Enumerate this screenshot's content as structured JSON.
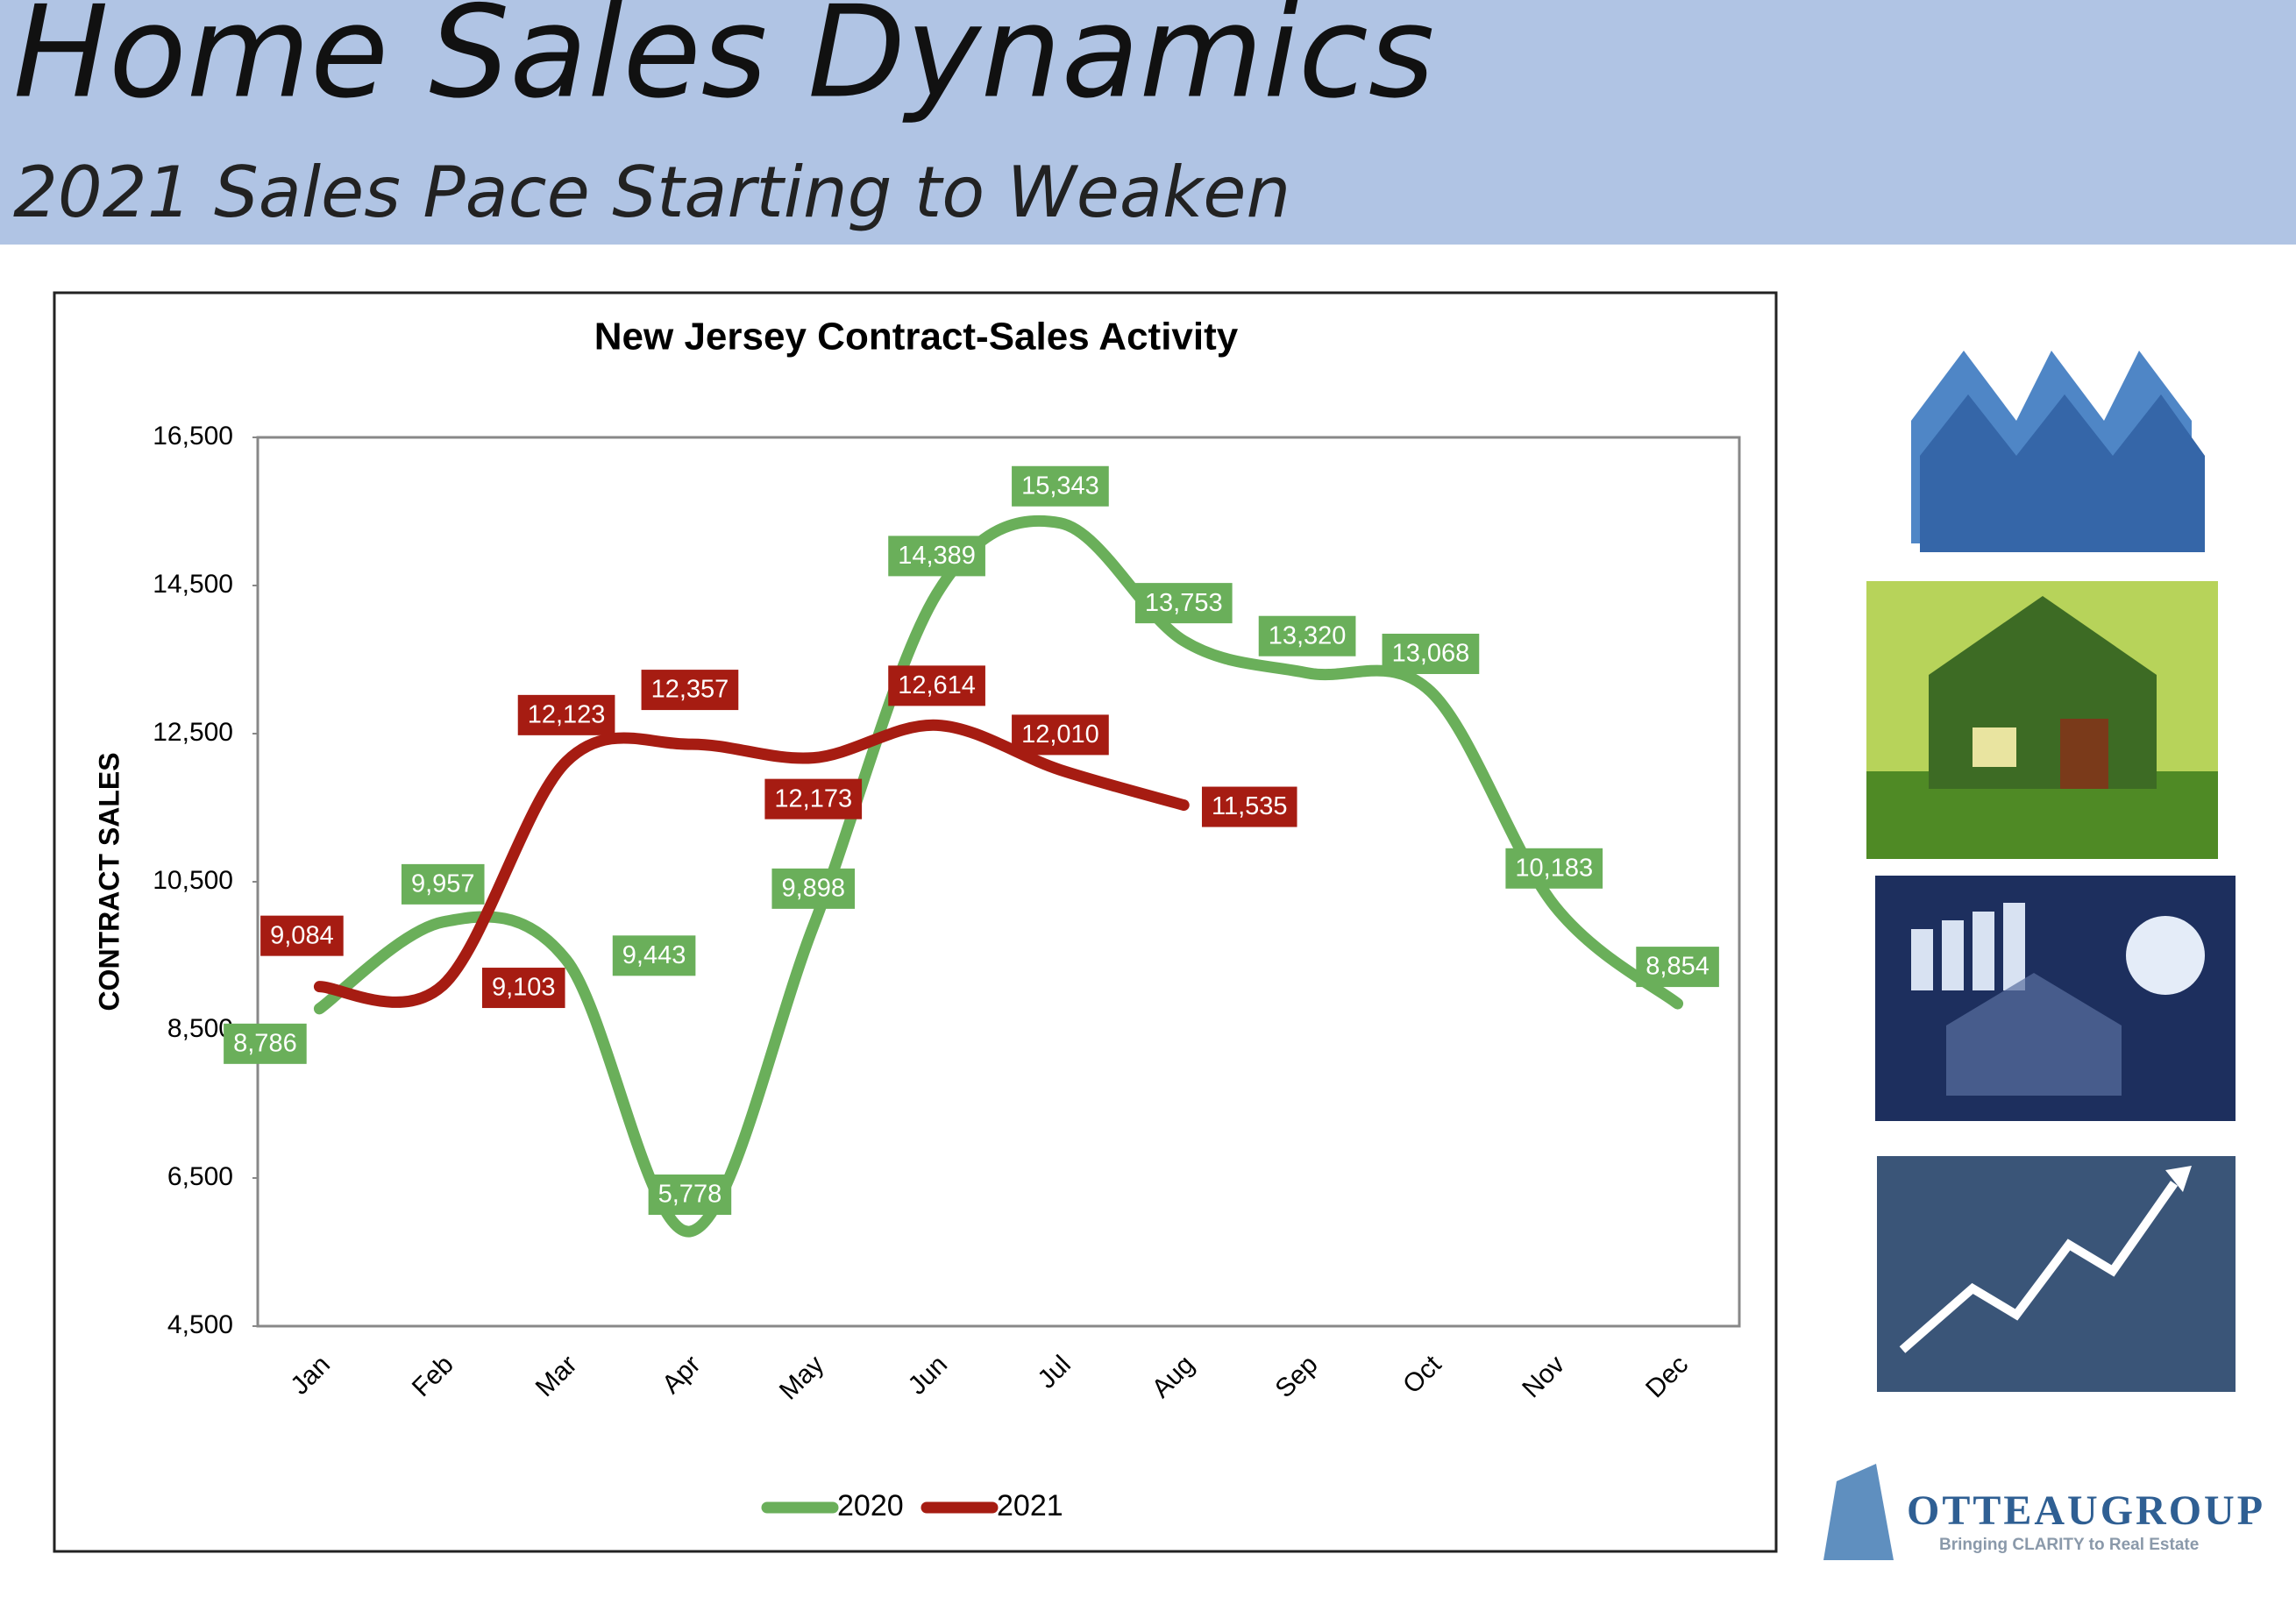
{
  "header": {
    "title": "Home Sales Dynamics",
    "subtitle": "2021 Sales Pace Starting to Weaken"
  },
  "chart_data": {
    "type": "line",
    "title": "New Jersey Contract-Sales Activity",
    "y_label": "CONTRACT SALES",
    "categories": [
      "Jan",
      "Feb",
      "Mar",
      "Apr",
      "May",
      "Jun",
      "Jul",
      "Aug",
      "Sep",
      "Oct",
      "Nov",
      "Dec"
    ],
    "series": [
      {
        "name": "2020",
        "color": "#6aaf5a",
        "values": [
          8786,
          9957,
          9443,
          5778,
          9898,
          14389,
          15343,
          13753,
          13320,
          13068,
          10183,
          8854
        ],
        "value_labels": [
          "8,786",
          "9,957",
          "9,443",
          "5,778",
          "9,898",
          "14,389",
          "15,343",
          "13,753",
          "13,320",
          "13,068",
          "10,183",
          "8,854"
        ]
      },
      {
        "name": "2021",
        "color": "#a61c12",
        "values": [
          9084,
          9103,
          12123,
          12357,
          12173,
          12614,
          12010,
          11535,
          null,
          null,
          null,
          null
        ],
        "value_labels": [
          "9,084",
          "9,103",
          "12,123",
          "12,357",
          "12,173",
          "12,614",
          "12,010",
          "11,535",
          null,
          null,
          null,
          null
        ]
      }
    ],
    "ylim": [
      4500,
      16500
    ],
    "yticks": [
      {
        "value": 4500,
        "label": "4,500"
      },
      {
        "value": 6500,
        "label": "6,500"
      },
      {
        "value": 8500,
        "label": "8,500"
      },
      {
        "value": 10500,
        "label": "10,500"
      },
      {
        "value": 12500,
        "label": "12,500"
      },
      {
        "value": 14500,
        "label": "14,500"
      },
      {
        "value": 16500,
        "label": "16,500"
      }
    ],
    "legend": "bottom"
  },
  "logo": {
    "name": "OTTEAUGROUP",
    "tagline": "Bringing CLARITY to Real Estate"
  }
}
